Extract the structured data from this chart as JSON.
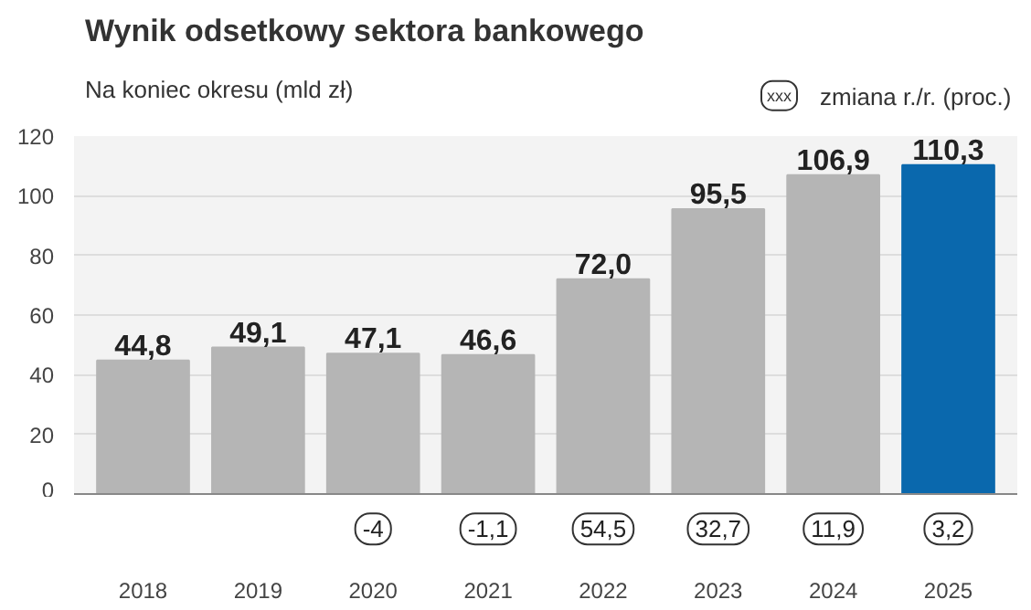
{
  "chart_data": {
    "type": "bar",
    "title": "Wynik odsetkowy sektora bankowego",
    "subtitle": "Na koniec okresu (mld zł)",
    "categories": [
      "2018",
      "2019",
      "2020",
      "2021",
      "2022",
      "2023",
      "2024",
      "2025"
    ],
    "values": [
      44.8,
      49.1,
      47.1,
      46.6,
      72.0,
      95.5,
      106.9,
      110.3
    ],
    "colors": [
      "#b5b5b5",
      "#b5b5b5",
      "#b5b5b5",
      "#b5b5b5",
      "#b5b5b5",
      "#b5b5b5",
      "#b5b5b5",
      "#0a68ad"
    ],
    "value_labels": [
      "44,8",
      "49,1",
      "47,1",
      "46,6",
      "72,0",
      "95,5",
      "106,9",
      "110,3"
    ],
    "ylim": [
      0,
      120
    ],
    "yticks": [
      0,
      20,
      40,
      60,
      80,
      100,
      120
    ],
    "grid": "y",
    "annotations": [
      "xxx",
      "zmiana r./r. (proc.)",
      "-4",
      "-1,1",
      "54,5",
      "32,7",
      "11,9",
      "3,2"
    ]
  }
}
